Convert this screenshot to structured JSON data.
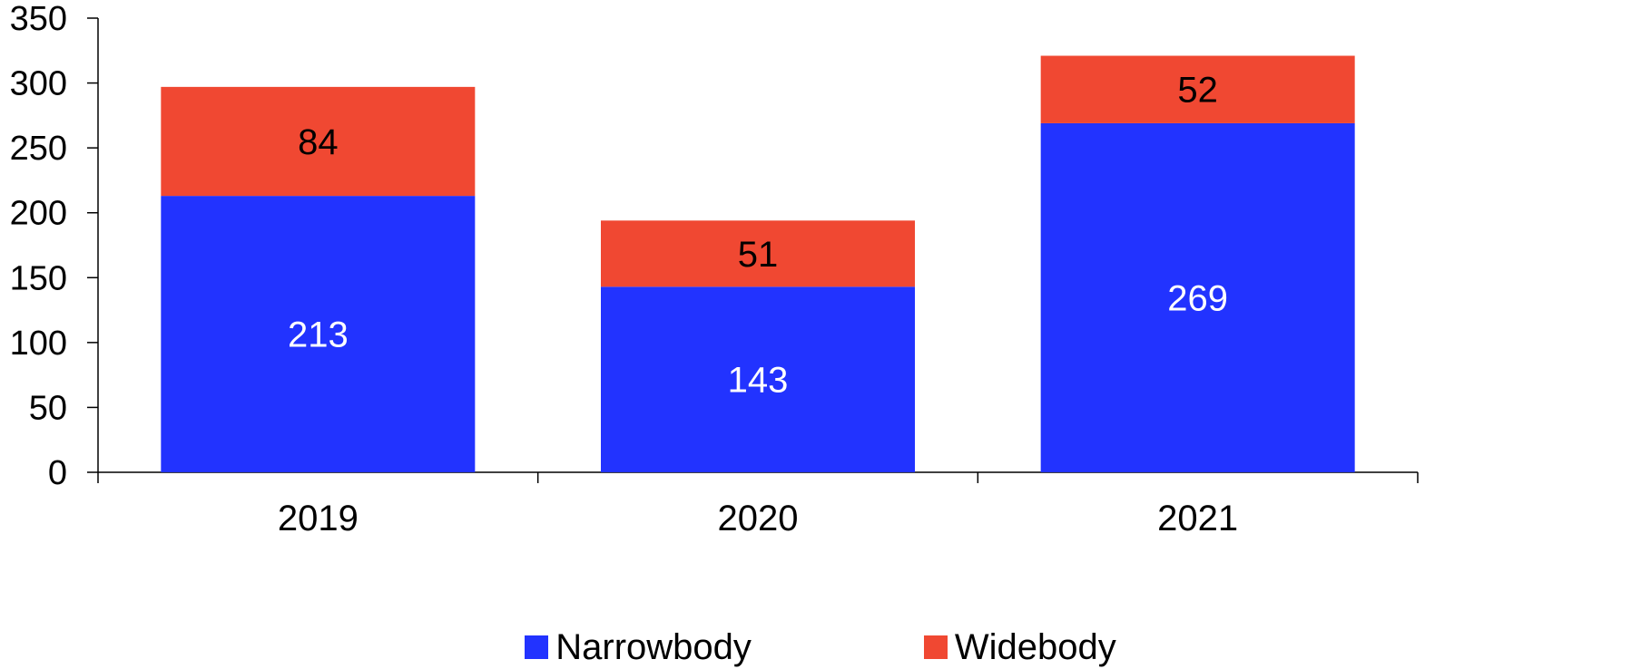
{
  "chart_data": {
    "type": "bar",
    "stacked": true,
    "categories": [
      "2019",
      "2020",
      "2021"
    ],
    "series": [
      {
        "name": "Narrowbody",
        "values": [
          213,
          143,
          269
        ],
        "color": "#2233FF",
        "label_color": "#FFFFFF"
      },
      {
        "name": "Widebody",
        "values": [
          84,
          51,
          52
        ],
        "color": "#F04832",
        "label_color": "#000000"
      }
    ],
    "ylim": [
      0,
      350
    ],
    "yticks": [
      0,
      50,
      100,
      150,
      200,
      250,
      300,
      350
    ],
    "grid": false,
    "legend_position": "bottom"
  }
}
